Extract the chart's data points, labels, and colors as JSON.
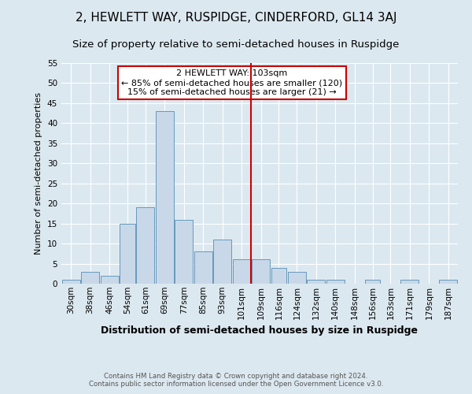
{
  "title": "2, HEWLETT WAY, RUSPIDGE, CINDERFORD, GL14 3AJ",
  "subtitle": "Size of property relative to semi-detached houses in Ruspidge",
  "xlabel": "Distribution of semi-detached houses by size in Ruspidge",
  "ylabel": "Number of semi-detached properties",
  "footer_line1": "Contains HM Land Registry data © Crown copyright and database right 2024.",
  "footer_line2": "Contains public sector information licensed under the Open Government Licence v3.0.",
  "bin_edges": [
    26,
    34,
    42,
    50,
    57,
    65,
    73,
    81,
    89,
    97,
    105,
    113,
    120,
    128,
    136,
    144,
    152,
    159,
    167,
    175,
    183,
    191
  ],
  "bin_labels": [
    "30sqm",
    "38sqm",
    "46sqm",
    "54sqm",
    "61sqm",
    "69sqm",
    "77sqm",
    "85sqm",
    "93sqm",
    "101sqm",
    "109sqm",
    "116sqm",
    "124sqm",
    "132sqm",
    "140sqm",
    "148sqm",
    "156sqm",
    "163sqm",
    "171sqm",
    "179sqm",
    "187sqm"
  ],
  "counts": [
    1,
    3,
    2,
    15,
    19,
    43,
    16,
    8,
    11,
    6,
    6,
    4,
    3,
    1,
    1,
    0,
    1,
    0,
    1,
    0,
    1
  ],
  "bar_facecolor": "#c8d8e8",
  "bar_edgecolor": "#6699bb",
  "vline_x": 105,
  "vline_color": "#cc0000",
  "annotation_title": "2 HEWLETT WAY: 103sqm",
  "annotation_line1": "← 85% of semi-detached houses are smaller (120)",
  "annotation_line2": "15% of semi-detached houses are larger (21) →",
  "annotation_box_edgecolor": "#cc0000",
  "annotation_box_facecolor": "#ffffff",
  "ylim": [
    0,
    55
  ],
  "yticks": [
    0,
    5,
    10,
    15,
    20,
    25,
    30,
    35,
    40,
    45,
    50,
    55
  ],
  "bg_color": "#dce8f0",
  "plot_bg_color": "#dce8f0",
  "grid_color": "#ffffff",
  "title_fontsize": 11,
  "subtitle_fontsize": 9.5,
  "annotation_fontsize": 8,
  "tick_fontsize": 7.5,
  "ylabel_fontsize": 8,
  "xlabel_fontsize": 9
}
